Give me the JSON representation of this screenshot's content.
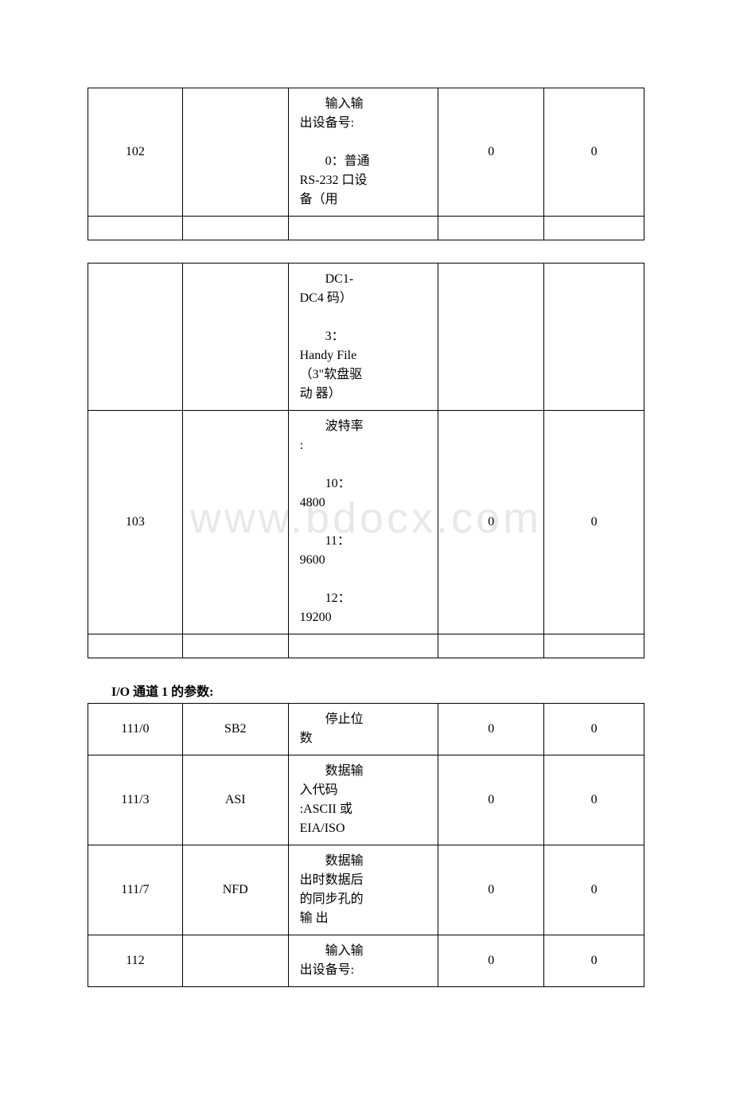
{
  "watermark": "www.bdocx.com",
  "table1": {
    "rows": [
      {
        "c1": "102",
        "c2": "",
        "c3_lines": [
          {
            "text": "输入输",
            "indent": true
          },
          {
            "text": "出设备号:",
            "indent": false
          },
          {
            "text": " ",
            "indent": false
          },
          {
            "text": "0：普通",
            "indent": true
          },
          {
            "text": "RS-232 口设",
            "indent": false
          },
          {
            "text": "备（用",
            "indent": false
          }
        ],
        "c4": "0",
        "c5": "0"
      }
    ]
  },
  "table2": {
    "rows": [
      {
        "c1": "",
        "c2": "",
        "c3_lines": [
          {
            "text": "DC1-",
            "indent": true
          },
          {
            "text": "DC4 码）",
            "indent": false
          },
          {
            "text": " ",
            "indent": false
          },
          {
            "text": "3：",
            "indent": true
          },
          {
            "text": "Handy File",
            "indent": false
          },
          {
            "text": "（3\"软盘驱",
            "indent": false
          },
          {
            "text": "动 器）",
            "indent": false
          }
        ],
        "c4": "",
        "c5": ""
      },
      {
        "c1": "103",
        "c2": "",
        "c3_lines": [
          {
            "text": "波特率",
            "indent": true
          },
          {
            "text": ":",
            "indent": false
          },
          {
            "text": " ",
            "indent": false
          },
          {
            "text": "10：",
            "indent": true
          },
          {
            "text": "4800",
            "indent": false
          },
          {
            "text": " ",
            "indent": false
          },
          {
            "text": "11：",
            "indent": true
          },
          {
            "text": "9600",
            "indent": false
          },
          {
            "text": " ",
            "indent": false
          },
          {
            "text": "12：",
            "indent": true
          },
          {
            "text": "19200",
            "indent": false
          }
        ],
        "c4": "0",
        "c5": "0"
      }
    ]
  },
  "heading": "I/O 通道 1 的参数:",
  "table3": {
    "rows": [
      {
        "c1": "111/0",
        "c2": "SB2",
        "c3_lines": [
          {
            "text": "停止位",
            "indent": true
          },
          {
            "text": "数",
            "indent": false
          }
        ],
        "c4": "0",
        "c5": "0"
      },
      {
        "c1": "111/3",
        "c2": "ASI",
        "c3_lines": [
          {
            "text": "数据输",
            "indent": true
          },
          {
            "text": "入代码",
            "indent": false
          },
          {
            "text": ":ASCII 或",
            "indent": false
          },
          {
            "text": "EIA/ISO",
            "indent": false
          }
        ],
        "c4": "0",
        "c5": "0"
      },
      {
        "c1": "111/7",
        "c2": "NFD",
        "c3_lines": [
          {
            "text": "数据输",
            "indent": true
          },
          {
            "text": "出时数据后",
            "indent": false
          },
          {
            "text": "的同步孔的",
            "indent": false
          },
          {
            "text": "输 出",
            "indent": false
          }
        ],
        "c4": "0",
        "c5": "0"
      },
      {
        "c1": "112",
        "c2": "",
        "c3_lines": [
          {
            "text": "输入输",
            "indent": true
          },
          {
            "text": "出设备号:",
            "indent": false
          }
        ],
        "c4": "0",
        "c5": "0"
      }
    ]
  }
}
